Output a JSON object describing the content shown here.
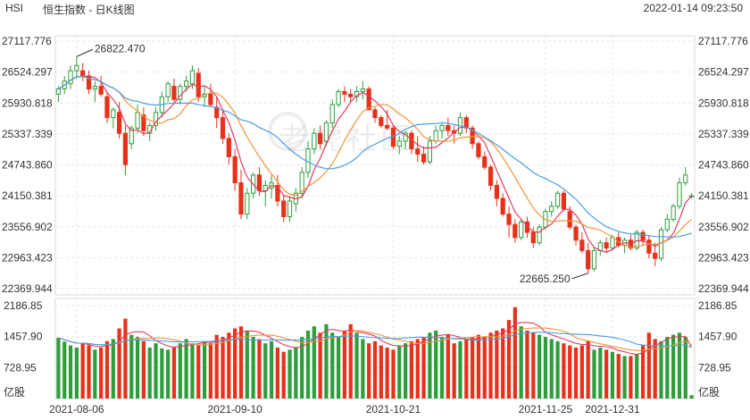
{
  "header": {
    "symbol": "HSI",
    "title": "恒生指数 - 日K线图",
    "timestamp": "2022-01-14 09:23:50"
  },
  "watermark": "老虎社區",
  "colors": {
    "up": "#2e9e3c",
    "down": "#e8311a",
    "ma5": "#e33b5f",
    "ma10": "#f0953a",
    "ma20": "#4a9de0",
    "grid": "#e6e6e6",
    "text": "#333333"
  },
  "chart_data": [
    {
      "type": "candlestick",
      "price_axis": {
        "ticks": [
          "27117.776",
          "26524.297",
          "25930.818",
          "25337.339",
          "24743.860",
          "24150.381",
          "23556.902",
          "22963.423",
          "22369.944"
        ],
        "range": [
          22369.944,
          27117.776
        ]
      },
      "x_tick_labels": [
        "2021-08-06",
        "2021-09-10",
        "2021-10-21",
        "2021-11-25",
        "2021-12-31"
      ],
      "annotations": {
        "high": "26822.470",
        "low": "22665.250"
      },
      "moving_averages": [
        "ma5",
        "ma10",
        "ma20"
      ],
      "candles": [
        [
          26100,
          26250,
          25950,
          26200,
          1430
        ],
        [
          26200,
          26450,
          26100,
          26350,
          1340
        ],
        [
          26300,
          26650,
          26200,
          26550,
          1250
        ],
        [
          26550,
          26822,
          26400,
          26650,
          1200
        ],
        [
          26550,
          26700,
          26350,
          26450,
          1300
        ],
        [
          26450,
          26550,
          26100,
          26200,
          1250
        ],
        [
          26200,
          26350,
          25950,
          26250,
          1150
        ],
        [
          26250,
          26450,
          26050,
          26100,
          1200
        ],
        [
          26050,
          26150,
          25550,
          25650,
          1350
        ],
        [
          25650,
          25850,
          25450,
          25800,
          1400
        ],
        [
          25750,
          25950,
          25250,
          25350,
          1650
        ],
        [
          25350,
          25500,
          24550,
          24750,
          1880
        ],
        [
          25150,
          25500,
          25050,
          25450,
          1500
        ],
        [
          25450,
          25900,
          25350,
          25750,
          1450
        ],
        [
          25700,
          25850,
          25300,
          25400,
          1350
        ],
        [
          25350,
          25550,
          25200,
          25500,
          1200
        ],
        [
          25500,
          25850,
          25400,
          25750,
          1300
        ],
        [
          25750,
          26150,
          25650,
          26050,
          1180
        ],
        [
          26050,
          26350,
          25950,
          26300,
          1150
        ],
        [
          26250,
          26400,
          25950,
          26000,
          1200
        ],
        [
          26000,
          26300,
          25900,
          26250,
          1300
        ],
        [
          26250,
          26450,
          26150,
          26350,
          1400
        ],
        [
          26300,
          26650,
          26200,
          26550,
          1300
        ],
        [
          26500,
          26600,
          25950,
          26050,
          1250
        ],
        [
          26050,
          26250,
          25850,
          26100,
          1350
        ],
        [
          26100,
          26300,
          25850,
          25900,
          1300
        ],
        [
          25850,
          26050,
          25450,
          25650,
          1500
        ],
        [
          25650,
          25800,
          25150,
          25250,
          1450
        ],
        [
          25250,
          25350,
          24750,
          24900,
          1550
        ],
        [
          24900,
          25050,
          24250,
          24400,
          1650
        ],
        [
          24400,
          24650,
          23700,
          23800,
          1700
        ],
        [
          23800,
          24300,
          23700,
          24200,
          1600
        ],
        [
          24200,
          24600,
          24100,
          24550,
          1450
        ],
        [
          24550,
          24700,
          24150,
          24250,
          1400
        ],
        [
          24250,
          24450,
          23950,
          24350,
          1300
        ],
        [
          24300,
          24550,
          24100,
          24400,
          1350
        ],
        [
          24350,
          24550,
          23950,
          24050,
          1200
        ],
        [
          24050,
          24150,
          23650,
          23750,
          1100
        ],
        [
          23750,
          24150,
          23650,
          24050,
          1150
        ],
        [
          24000,
          24300,
          23850,
          24200,
          1200
        ],
        [
          24200,
          24700,
          24100,
          24600,
          1450
        ],
        [
          24600,
          25200,
          24500,
          25050,
          1600
        ],
        [
          25050,
          25450,
          24950,
          25350,
          1700
        ],
        [
          25350,
          25500,
          25050,
          25150,
          1550
        ],
        [
          25200,
          25600,
          25100,
          25550,
          1750
        ],
        [
          25550,
          26000,
          25450,
          25900,
          1550
        ],
        [
          25900,
          26200,
          25850,
          26150,
          1450
        ],
        [
          26150,
          26250,
          25950,
          26100,
          1600
        ],
        [
          26100,
          26200,
          25950,
          26050,
          1750
        ],
        [
          26050,
          26250,
          25950,
          26150,
          1550
        ],
        [
          26150,
          26350,
          26000,
          26200,
          1400
        ],
        [
          26200,
          26250,
          25800,
          25800,
          1300
        ],
        [
          25800,
          25850,
          25550,
          25650,
          1350
        ],
        [
          25650,
          25700,
          25450,
          25500,
          1250
        ],
        [
          25500,
          25800,
          25400,
          25450,
          1200
        ],
        [
          25450,
          25500,
          25050,
          25100,
          1150
        ],
        [
          25100,
          25300,
          24950,
          25200,
          1250
        ],
        [
          25200,
          25400,
          25050,
          25350,
          1300
        ],
        [
          25350,
          25400,
          24950,
          25050,
          1350
        ],
        [
          25050,
          25300,
          24800,
          24950,
          1400
        ],
        [
          24950,
          25100,
          24750,
          24800,
          1450
        ],
        [
          24800,
          25300,
          24750,
          25200,
          1550
        ],
        [
          25200,
          25500,
          25150,
          25400,
          1600
        ],
        [
          25400,
          25550,
          25250,
          25500,
          1450
        ],
        [
          25500,
          25650,
          25300,
          25400,
          1500
        ],
        [
          25400,
          25500,
          25150,
          25350,
          1300
        ],
        [
          25350,
          25750,
          25300,
          25650,
          1350
        ],
        [
          25650,
          25700,
          25350,
          25450,
          1400
        ],
        [
          25450,
          25500,
          25050,
          25150,
          1450
        ],
        [
          25150,
          25200,
          24850,
          24900,
          1500
        ],
        [
          24900,
          25000,
          24650,
          24700,
          1450
        ],
        [
          24700,
          24750,
          24250,
          24350,
          1550
        ],
        [
          24350,
          24450,
          23950,
          24100,
          1600
        ],
        [
          24100,
          24200,
          23750,
          23800,
          1650
        ],
        [
          23800,
          23950,
          23350,
          23600,
          1850
        ],
        [
          23600,
          23700,
          23250,
          23350,
          2150
        ],
        [
          23350,
          23700,
          23300,
          23650,
          1700
        ],
        [
          23650,
          23750,
          23350,
          23450,
          1600
        ],
        [
          23450,
          23550,
          23150,
          23250,
          1550
        ],
        [
          23250,
          23600,
          23200,
          23550,
          1500
        ],
        [
          23550,
          23900,
          23500,
          23850,
          1450
        ],
        [
          23850,
          24050,
          23750,
          23950,
          1400
        ],
        [
          23950,
          24250,
          23900,
          24200,
          1350
        ],
        [
          24200,
          24250,
          23850,
          23900,
          1300
        ],
        [
          23850,
          23950,
          23500,
          23550,
          1250
        ],
        [
          23550,
          23600,
          23200,
          23300,
          1200
        ],
        [
          23300,
          23450,
          23050,
          23100,
          1250
        ],
        [
          23100,
          23250,
          22665,
          22750,
          1350
        ],
        [
          22750,
          23150,
          22700,
          23100,
          1150
        ],
        [
          23100,
          23300,
          23000,
          23250,
          1200
        ],
        [
          23250,
          23350,
          23050,
          23150,
          1150
        ],
        [
          23150,
          23400,
          23100,
          23350,
          1100
        ],
        [
          23350,
          23450,
          23150,
          23200,
          1050
        ],
        [
          23200,
          23350,
          23050,
          23300,
          1000
        ],
        [
          23300,
          23400,
          23100,
          23150,
          1000
        ],
        [
          23150,
          23500,
          23100,
          23450,
          1050
        ],
        [
          23450,
          23500,
          23200,
          23300,
          1250
        ],
        [
          23300,
          23400,
          22950,
          23050,
          1550
        ],
        [
          23050,
          23250,
          22800,
          22950,
          1400
        ],
        [
          22950,
          23550,
          22900,
          23500,
          1350
        ],
        [
          23500,
          23800,
          23450,
          23700,
          1450
        ],
        [
          23700,
          24000,
          23650,
          23950,
          1500
        ],
        [
          23950,
          24500,
          23900,
          24400,
          1550
        ],
        [
          24400,
          24700,
          24350,
          24550,
          1450
        ],
        [
          24150,
          24200,
          24100,
          24150,
          80
        ]
      ]
    }
  ],
  "volume_axis": {
    "ticks": [
      "2186.85",
      "1457.90",
      "728.95"
    ],
    "unit": "亿股",
    "max": 2186.85
  }
}
